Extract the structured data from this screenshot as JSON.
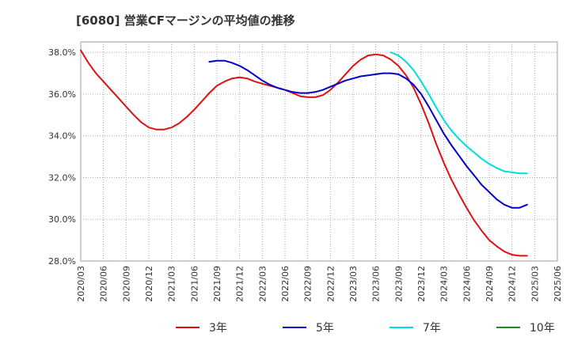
{
  "chart_data": {
    "type": "line",
    "title": "[6080]  営業CFマージンの平均値の推移",
    "xlabel": "",
    "ylabel": "",
    "ylim": [
      28.0,
      38.5
    ],
    "y_ticks": [
      28.0,
      30.0,
      32.0,
      34.0,
      36.0,
      38.0
    ],
    "y_tick_labels": [
      "28.0%",
      "30.0%",
      "32.0%",
      "34.0%",
      "36.0%",
      "38.0%"
    ],
    "x_ticks": [
      "2020/03",
      "2020/06",
      "2020/09",
      "2020/12",
      "2021/03",
      "2021/06",
      "2021/09",
      "2021/12",
      "2022/03",
      "2022/06",
      "2022/09",
      "2022/12",
      "2023/03",
      "2023/06",
      "2023/09",
      "2023/12",
      "2024/03",
      "2024/06",
      "2024/09",
      "2024/12",
      "2025/03",
      "2025/06"
    ],
    "grid": true,
    "legend_position": "bottom",
    "series": [
      {
        "name": "3年",
        "color": "#dd1111",
        "points": [
          [
            "2020/03",
            38.1
          ],
          [
            "2020/04",
            37.5
          ],
          [
            "2020/05",
            37.0
          ],
          [
            "2020/06",
            36.6
          ],
          [
            "2020/07",
            36.2
          ],
          [
            "2020/08",
            35.8
          ],
          [
            "2020/09",
            35.4
          ],
          [
            "2020/10",
            35.0
          ],
          [
            "2020/11",
            34.65
          ],
          [
            "2020/12",
            34.4
          ],
          [
            "2021/01",
            34.3
          ],
          [
            "2021/02",
            34.3
          ],
          [
            "2021/03",
            34.4
          ],
          [
            "2021/04",
            34.6
          ],
          [
            "2021/05",
            34.9
          ],
          [
            "2021/06",
            35.25
          ],
          [
            "2021/07",
            35.65
          ],
          [
            "2021/08",
            36.05
          ],
          [
            "2021/09",
            36.4
          ],
          [
            "2021/10",
            36.6
          ],
          [
            "2021/11",
            36.75
          ],
          [
            "2021/12",
            36.8
          ],
          [
            "2022/01",
            36.75
          ],
          [
            "2022/02",
            36.6
          ],
          [
            "2022/03",
            36.5
          ],
          [
            "2022/04",
            36.4
          ],
          [
            "2022/05",
            36.3
          ],
          [
            "2022/06",
            36.2
          ],
          [
            "2022/07",
            36.05
          ],
          [
            "2022/08",
            35.9
          ],
          [
            "2022/09",
            35.85
          ],
          [
            "2022/10",
            35.85
          ],
          [
            "2022/11",
            35.95
          ],
          [
            "2022/12",
            36.2
          ],
          [
            "2023/01",
            36.55
          ],
          [
            "2023/02",
            36.95
          ],
          [
            "2023/03",
            37.35
          ],
          [
            "2023/04",
            37.65
          ],
          [
            "2023/05",
            37.85
          ],
          [
            "2023/06",
            37.9
          ],
          [
            "2023/07",
            37.85
          ],
          [
            "2023/08",
            37.65
          ],
          [
            "2023/09",
            37.35
          ],
          [
            "2023/10",
            36.9
          ],
          [
            "2023/11",
            36.3
          ],
          [
            "2023/12",
            35.5
          ],
          [
            "2024/01",
            34.6
          ],
          [
            "2024/02",
            33.6
          ],
          [
            "2024/03",
            32.7
          ],
          [
            "2024/04",
            31.9
          ],
          [
            "2024/05",
            31.2
          ],
          [
            "2024/06",
            30.55
          ],
          [
            "2024/07",
            29.95
          ],
          [
            "2024/08",
            29.45
          ],
          [
            "2024/09",
            29.0
          ],
          [
            "2024/10",
            28.7
          ],
          [
            "2024/11",
            28.45
          ],
          [
            "2024/12",
            28.3
          ],
          [
            "2025/01",
            28.25
          ],
          [
            "2025/02",
            28.25
          ]
        ]
      },
      {
        "name": "5年",
        "color": "#0000cc",
        "points": [
          [
            "2021/08",
            37.55
          ],
          [
            "2021/09",
            37.6
          ],
          [
            "2021/10",
            37.6
          ],
          [
            "2021/11",
            37.5
          ],
          [
            "2021/12",
            37.35
          ],
          [
            "2022/01",
            37.15
          ],
          [
            "2022/02",
            36.9
          ],
          [
            "2022/03",
            36.65
          ],
          [
            "2022/04",
            36.45
          ],
          [
            "2022/05",
            36.3
          ],
          [
            "2022/06",
            36.2
          ],
          [
            "2022/07",
            36.1
          ],
          [
            "2022/08",
            36.05
          ],
          [
            "2022/09",
            36.05
          ],
          [
            "2022/10",
            36.1
          ],
          [
            "2022/11",
            36.2
          ],
          [
            "2022/12",
            36.35
          ],
          [
            "2023/01",
            36.5
          ],
          [
            "2023/02",
            36.65
          ],
          [
            "2023/03",
            36.75
          ],
          [
            "2023/04",
            36.85
          ],
          [
            "2023/05",
            36.9
          ],
          [
            "2023/06",
            36.95
          ],
          [
            "2023/07",
            37.0
          ],
          [
            "2023/08",
            37.0
          ],
          [
            "2023/09",
            36.95
          ],
          [
            "2023/10",
            36.75
          ],
          [
            "2023/11",
            36.45
          ],
          [
            "2023/12",
            36.0
          ],
          [
            "2024/01",
            35.4
          ],
          [
            "2024/02",
            34.75
          ],
          [
            "2024/03",
            34.1
          ],
          [
            "2024/04",
            33.55
          ],
          [
            "2024/05",
            33.05
          ],
          [
            "2024/06",
            32.55
          ],
          [
            "2024/07",
            32.1
          ],
          [
            "2024/08",
            31.65
          ],
          [
            "2024/09",
            31.3
          ],
          [
            "2024/10",
            30.95
          ],
          [
            "2024/11",
            30.7
          ],
          [
            "2024/12",
            30.55
          ],
          [
            "2025/01",
            30.55
          ],
          [
            "2025/02",
            30.7
          ]
        ]
      },
      {
        "name": "7年",
        "color": "#00dddd",
        "points": [
          [
            "2023/08",
            38.0
          ],
          [
            "2023/09",
            37.85
          ],
          [
            "2023/10",
            37.55
          ],
          [
            "2023/11",
            37.15
          ],
          [
            "2023/12",
            36.6
          ],
          [
            "2024/01",
            36.0
          ],
          [
            "2024/02",
            35.35
          ],
          [
            "2024/03",
            34.75
          ],
          [
            "2024/04",
            34.25
          ],
          [
            "2024/05",
            33.85
          ],
          [
            "2024/06",
            33.5
          ],
          [
            "2024/07",
            33.2
          ],
          [
            "2024/08",
            32.9
          ],
          [
            "2024/09",
            32.65
          ],
          [
            "2024/10",
            32.45
          ],
          [
            "2024/11",
            32.3
          ],
          [
            "2024/12",
            32.25
          ],
          [
            "2025/01",
            32.2
          ],
          [
            "2025/02",
            32.2
          ]
        ]
      },
      {
        "name": "10年",
        "color": "#228822",
        "points": []
      }
    ]
  }
}
